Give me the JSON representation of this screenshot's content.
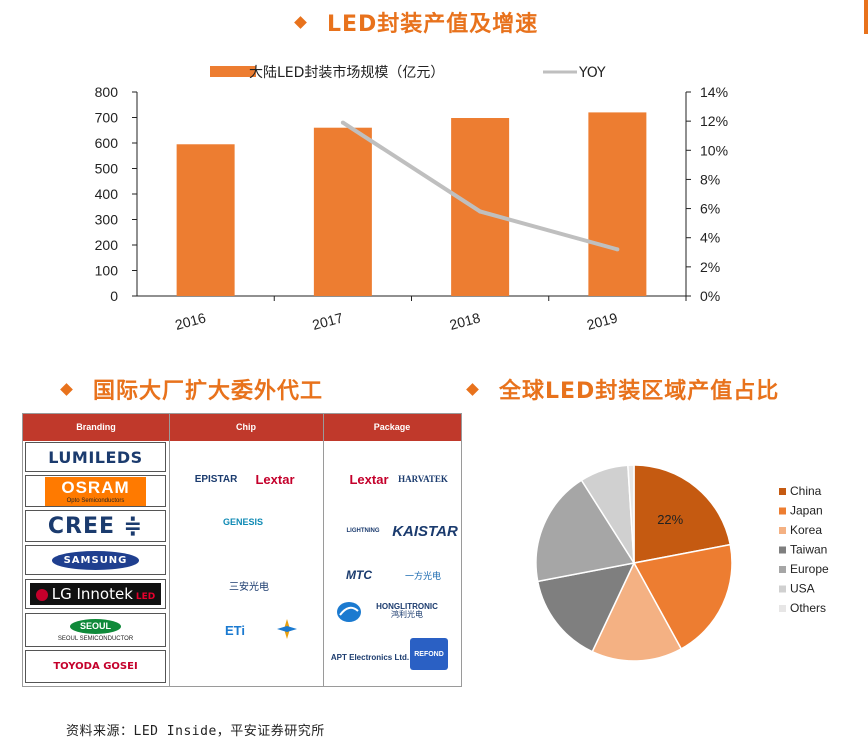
{
  "titles": {
    "top": "LED封装产值及增速",
    "left": "国际大厂扩大委外代工",
    "right": "全球LED封装区域产值占比"
  },
  "colors": {
    "accent": "#e8721c",
    "bar": "#ed7d31",
    "yoy_line": "#bfbfbf",
    "table_header": "#c0392b"
  },
  "chart_data": [
    {
      "type": "bar+line",
      "categories": [
        "2016",
        "2017",
        "2018",
        "2019"
      ],
      "series": [
        {
          "name": "大陆LED封装市场规模（亿元）",
          "type": "bar",
          "axis": "left",
          "values": [
            595,
            660,
            698,
            720
          ]
        },
        {
          "name": "YOY",
          "type": "line",
          "axis": "right",
          "values": [
            null,
            0.119,
            0.058,
            0.032
          ]
        }
      ],
      "left_axis": {
        "ylim": [
          0,
          800
        ],
        "ticks": [
          "0",
          "100",
          "200",
          "300",
          "400",
          "500",
          "600",
          "700",
          "800"
        ]
      },
      "right_axis": {
        "ylim": [
          0,
          0.14
        ],
        "ticks": [
          "0%",
          "2%",
          "4%",
          "6%",
          "8%",
          "10%",
          "12%",
          "14%"
        ]
      },
      "legend_position": "top"
    },
    {
      "type": "pie",
      "labels": [
        "China",
        "Japan",
        "Korea",
        "Taiwan",
        "Europe",
        "USA",
        "Others"
      ],
      "values": [
        22,
        20,
        15,
        15,
        19,
        8,
        1
      ],
      "colors": [
        "#c55a11",
        "#ed7d31",
        "#f4b183",
        "#7f7f7f",
        "#a6a6a6",
        "#d0d0d0",
        "#e7e6e6"
      ],
      "data_labels": [
        "22%",
        "",
        "",
        "",
        "",
        "",
        ""
      ],
      "legend_position": "right"
    }
  ],
  "table": {
    "headers": [
      "Branding",
      "Chip",
      "Package"
    ],
    "branding": {
      "lumileds": "LUMILEDS",
      "osram": "OSRAM",
      "osram_sub": "Opto Semiconductors",
      "cree": "CREE ≑",
      "samsung": "SAMSUNG",
      "lg": "LG Innotek",
      "lg_led": "LED",
      "seoul": "SEOUL",
      "seoul_sub": "SEOUL SEMICONDUCTOR",
      "toyoda": "TOYODA GOSEI"
    },
    "chip": {
      "epistar": "EPISTAR",
      "lextar": "Lextar",
      "genesis": "GENESIS",
      "sanan": "三安光电",
      "eti": "ETi"
    },
    "package": {
      "lextar": "Lextar",
      "harvatek": "HARVATEK",
      "lightning": "LIGHTNING",
      "kaistar": "KAISTAR",
      "mtc": "MTC",
      "yifang": "一方光电",
      "hongli": "HONGLITRONIC",
      "hongli_cn": "鸿利光电",
      "apt": "APT Electronics Ltd.",
      "refond": "REFOND"
    }
  },
  "source": "资料来源：LED Inside，平安证券研究所"
}
